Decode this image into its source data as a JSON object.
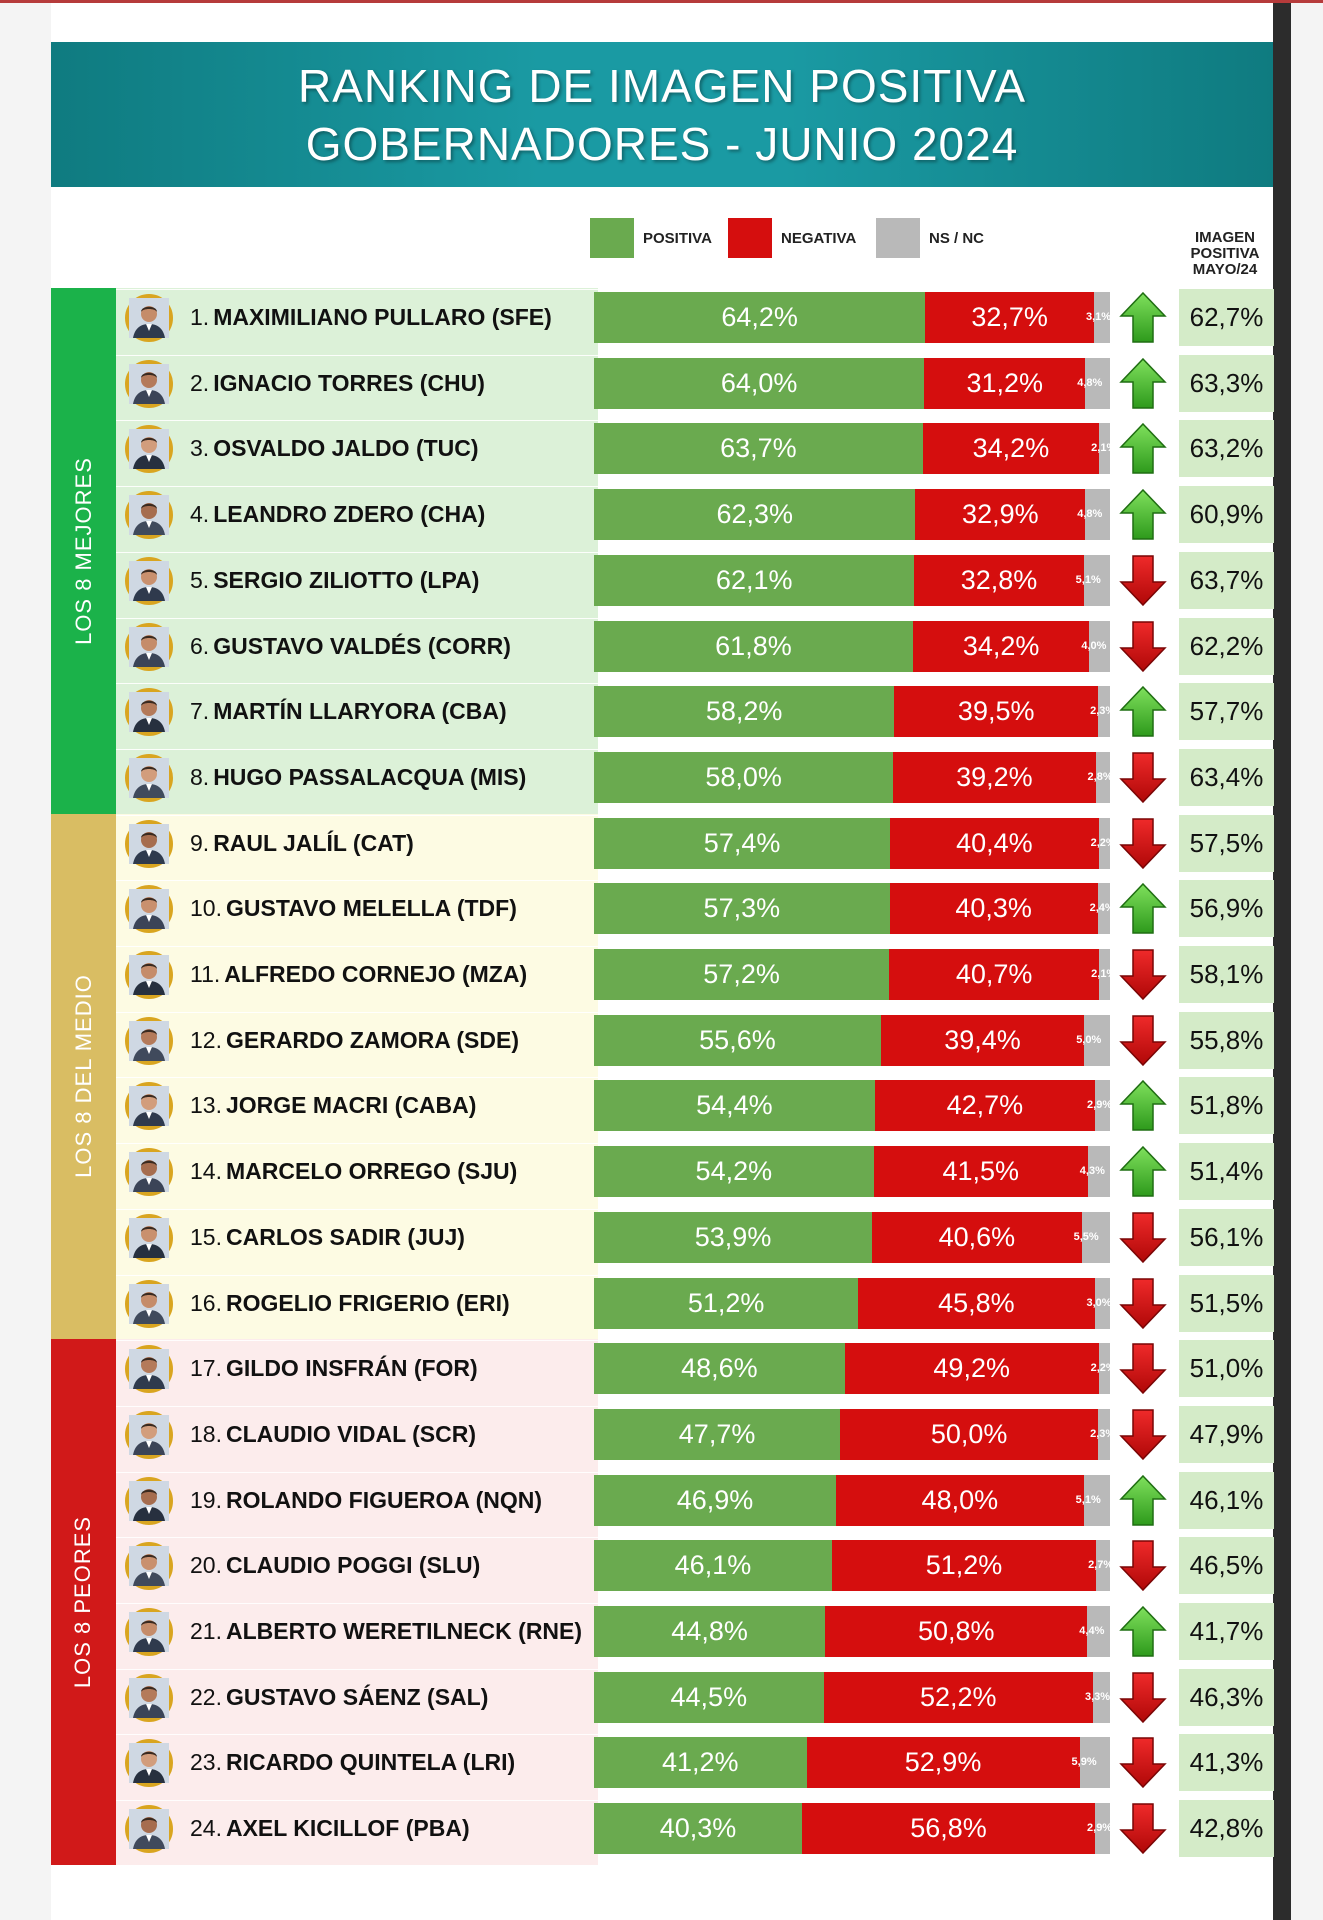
{
  "title": {
    "line1": "RANKING DE IMAGEN POSITIVA",
    "line2": "GOBERNADORES - JUNIO 2024"
  },
  "legend": [
    {
      "label": "POSITIVA",
      "color": "#6aaa4f"
    },
    {
      "label": "NEGATIVA",
      "color": "#d50e0e"
    },
    {
      "label": "NS / NC",
      "color": "#b9b9b9"
    }
  ],
  "prev_header": [
    "IMAGEN",
    "POSITIVA",
    "MAYO/24"
  ],
  "groups": [
    {
      "label": "LOS 8 MEJORES",
      "color": "#1bb24a",
      "bg": "#dcf1d8"
    },
    {
      "label": "LOS 8 DEL MEDIO",
      "color": "#d9bd63",
      "bg": "#fdfbe3"
    },
    {
      "label": "LOS 8 PEORES",
      "color": "#d11919",
      "bg": "#fcecec"
    }
  ],
  "chart_data": {
    "type": "bar",
    "stacked": true,
    "title": "RANKING DE IMAGEN POSITIVA GOBERNADORES - JUNIO 2024",
    "series_names": [
      "POSITIVA",
      "NEGATIVA",
      "NS / NC"
    ],
    "rows": [
      {
        "rank": "1.",
        "name": "MAXIMILIANO PULLARO (SFE)",
        "pos": 64.2,
        "pos_label": "64,2%",
        "neg": 32.7,
        "neg_label": "32,7%",
        "ns": 3.1,
        "ns_label": "3,1%",
        "trend": "up",
        "prev": "62,7%",
        "prev_value": 62.7
      },
      {
        "rank": "2.",
        "name": "IGNACIO TORRES (CHU)",
        "pos": 64.0,
        "pos_label": "64,0%",
        "neg": 31.2,
        "neg_label": "31,2%",
        "ns": 4.8,
        "ns_label": "4,8%",
        "trend": "up",
        "prev": "63,3%",
        "prev_value": 63.3
      },
      {
        "rank": "3.",
        "name": "OSVALDO JALDO (TUC)",
        "pos": 63.7,
        "pos_label": "63,7%",
        "neg": 34.2,
        "neg_label": "34,2%",
        "ns": 2.1,
        "ns_label": "2,1%",
        "trend": "up",
        "prev": "63,2%",
        "prev_value": 63.2
      },
      {
        "rank": "4.",
        "name": "LEANDRO ZDERO (CHA)",
        "pos": 62.3,
        "pos_label": "62,3%",
        "neg": 32.9,
        "neg_label": "32,9%",
        "ns": 4.8,
        "ns_label": "4,8%",
        "trend": "up",
        "prev": "60,9%",
        "prev_value": 60.9
      },
      {
        "rank": "5.",
        "name": "SERGIO ZILIOTTO (LPA)",
        "pos": 62.1,
        "pos_label": "62,1%",
        "neg": 32.8,
        "neg_label": "32,8%",
        "ns": 5.1,
        "ns_label": "5,1%",
        "trend": "down",
        "prev": "63,7%",
        "prev_value": 63.7
      },
      {
        "rank": "6.",
        "name": "GUSTAVO VALDÉS (CORR)",
        "pos": 61.8,
        "pos_label": "61,8%",
        "neg": 34.2,
        "neg_label": "34,2%",
        "ns": 4.0,
        "ns_label": "4,0%",
        "trend": "down",
        "prev": "62,2%",
        "prev_value": 62.2
      },
      {
        "rank": "7.",
        "name": "MARTÍN LLARYORA (CBA)",
        "pos": 58.2,
        "pos_label": "58,2%",
        "neg": 39.5,
        "neg_label": "39,5%",
        "ns": 2.3,
        "ns_label": "2,3%",
        "trend": "up",
        "prev": "57,7%",
        "prev_value": 57.7
      },
      {
        "rank": "8.",
        "name": "HUGO PASSALACQUA (MIS)",
        "pos": 58.0,
        "pos_label": "58,0%",
        "neg": 39.2,
        "neg_label": "39,2%",
        "ns": 2.8,
        "ns_label": "2,8%",
        "trend": "down",
        "prev": "63,4%",
        "prev_value": 63.4
      },
      {
        "rank": "9.",
        "name": "RAUL JALÍL (CAT)",
        "pos": 57.4,
        "pos_label": "57,4%",
        "neg": 40.4,
        "neg_label": "40,4%",
        "ns": 2.2,
        "ns_label": "2,2%",
        "trend": "down",
        "prev": "57,5%",
        "prev_value": 57.5
      },
      {
        "rank": "10.",
        "name": "GUSTAVO MELELLA (TDF)",
        "pos": 57.3,
        "pos_label": "57,3%",
        "neg": 40.3,
        "neg_label": "40,3%",
        "ns": 2.4,
        "ns_label": "2,4%",
        "trend": "up",
        "prev": "56,9%",
        "prev_value": 56.9
      },
      {
        "rank": "11.",
        "name": "ALFREDO CORNEJO (MZA)",
        "pos": 57.2,
        "pos_label": "57,2%",
        "neg": 40.7,
        "neg_label": "40,7%",
        "ns": 2.1,
        "ns_label": "2,1%",
        "trend": "down",
        "prev": "58,1%",
        "prev_value": 58.1
      },
      {
        "rank": "12.",
        "name": "GERARDO ZAMORA (SDE)",
        "pos": 55.6,
        "pos_label": "55,6%",
        "neg": 39.4,
        "neg_label": "39,4%",
        "ns": 5.0,
        "ns_label": "5,0%",
        "trend": "down",
        "prev": "55,8%",
        "prev_value": 55.8
      },
      {
        "rank": "13.",
        "name": "JORGE MACRI (CABA)",
        "pos": 54.4,
        "pos_label": "54,4%",
        "neg": 42.7,
        "neg_label": "42,7%",
        "ns": 2.9,
        "ns_label": "2,9%",
        "trend": "up",
        "prev": "51,8%",
        "prev_value": 51.8
      },
      {
        "rank": "14.",
        "name": "MARCELO ORREGO (SJU)",
        "pos": 54.2,
        "pos_label": "54,2%",
        "neg": 41.5,
        "neg_label": "41,5%",
        "ns": 4.3,
        "ns_label": "4,3%",
        "trend": "up",
        "prev": "51,4%",
        "prev_value": 51.4
      },
      {
        "rank": "15.",
        "name": "CARLOS SADIR (JUJ)",
        "pos": 53.9,
        "pos_label": "53,9%",
        "neg": 40.6,
        "neg_label": "40,6%",
        "ns": 5.5,
        "ns_label": "5,5%",
        "trend": "down",
        "prev": "56,1%",
        "prev_value": 56.1
      },
      {
        "rank": "16.",
        "name": "ROGELIO FRIGERIO (ERI)",
        "pos": 51.2,
        "pos_label": "51,2%",
        "neg": 45.8,
        "neg_label": "45,8%",
        "ns": 3.0,
        "ns_label": "3,0%",
        "trend": "down",
        "prev": "51,5%",
        "prev_value": 51.5
      },
      {
        "rank": "17.",
        "name": "GILDO INSFRÁN (FOR)",
        "pos": 48.6,
        "pos_label": "48,6%",
        "neg": 49.2,
        "neg_label": "49,2%",
        "ns": 2.2,
        "ns_label": "2,2%",
        "trend": "down",
        "prev": "51,0%",
        "prev_value": 51.0
      },
      {
        "rank": "18.",
        "name": "CLAUDIO VIDAL (SCR)",
        "pos": 47.7,
        "pos_label": "47,7%",
        "neg": 50.0,
        "neg_label": "50,0%",
        "ns": 2.3,
        "ns_label": "2,3%",
        "trend": "down",
        "prev": "47,9%",
        "prev_value": 47.9
      },
      {
        "rank": "19.",
        "name": "ROLANDO FIGUEROA (NQN)",
        "pos": 46.9,
        "pos_label": "46,9%",
        "neg": 48.0,
        "neg_label": "48,0%",
        "ns": 5.1,
        "ns_label": "5,1%",
        "trend": "up",
        "prev": "46,1%",
        "prev_value": 46.1
      },
      {
        "rank": "20.",
        "name": "CLAUDIO POGGI (SLU)",
        "pos": 46.1,
        "pos_label": "46,1%",
        "neg": 51.2,
        "neg_label": "51,2%",
        "ns": 2.7,
        "ns_label": "2,7%",
        "trend": "down",
        "prev": "46,5%",
        "prev_value": 46.5
      },
      {
        "rank": "21.",
        "name": "ALBERTO WERETILNECK (RNE)",
        "pos": 44.8,
        "pos_label": "44,8%",
        "neg": 50.8,
        "neg_label": "50,8%",
        "ns": 4.4,
        "ns_label": "4,4%",
        "trend": "up",
        "prev": "41,7%",
        "prev_value": 41.7
      },
      {
        "rank": "22.",
        "name": "GUSTAVO SÁENZ (SAL)",
        "pos": 44.5,
        "pos_label": "44,5%",
        "neg": 52.2,
        "neg_label": "52,2%",
        "ns": 3.3,
        "ns_label": "3,3%",
        "trend": "down",
        "prev": "46,3%",
        "prev_value": 46.3
      },
      {
        "rank": "23.",
        "name": "RICARDO QUINTELA (LRI)",
        "pos": 41.2,
        "pos_label": "41,2%",
        "neg": 52.9,
        "neg_label": "52,9%",
        "ns": 5.9,
        "ns_label": "5,9%",
        "trend": "down",
        "prev": "41,3%",
        "prev_value": 41.3
      },
      {
        "rank": "24.",
        "name": "AXEL KICILLOF (PBA)",
        "pos": 40.3,
        "pos_label": "40,3%",
        "neg": 56.8,
        "neg_label": "56,8%",
        "ns": 2.9,
        "ns_label": "2,9%",
        "trend": "down",
        "prev": "42,8%",
        "prev_value": 42.8
      }
    ]
  }
}
